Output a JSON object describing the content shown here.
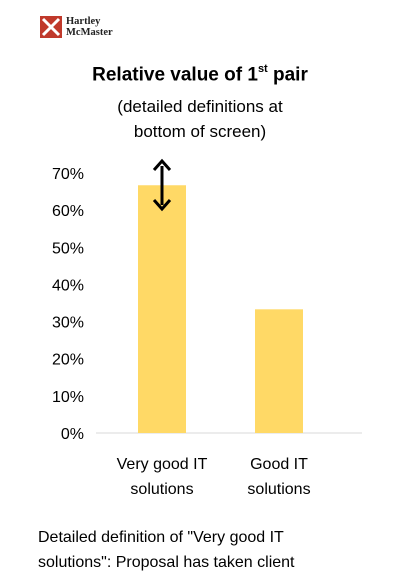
{
  "logo": {
    "line1": "Hartley",
    "line2": "McMaster"
  },
  "header": {
    "title_main": "Relative value of 1",
    "title_sup": "st",
    "title_tail": " pair",
    "subtitle_line1": "(detailed definitions at",
    "subtitle_line2": "bottom of screen)"
  },
  "chart_data": {
    "type": "bar",
    "categories": [
      "Very good IT solutions",
      "Good IT solutions"
    ],
    "category_lines": [
      [
        "Very good IT",
        "solutions"
      ],
      [
        "Good IT",
        "solutions"
      ]
    ],
    "values": [
      66.7,
      33.3
    ],
    "ylim": [
      0,
      70
    ],
    "yticks": [
      "0%",
      "10%",
      "20%",
      "30%",
      "40%",
      "50%",
      "60%",
      "70%"
    ],
    "bar_color": "#FFD966",
    "annotation": "double-headed arrow above first bar",
    "grid": false
  },
  "footer": {
    "line1": "Detailed definition of \"Very good IT",
    "line2": "solutions\": Proposal has taken client"
  },
  "colors": {
    "bar": "#FFD966",
    "axis": "#D9D9D9",
    "logo_red": "#C0392B"
  }
}
